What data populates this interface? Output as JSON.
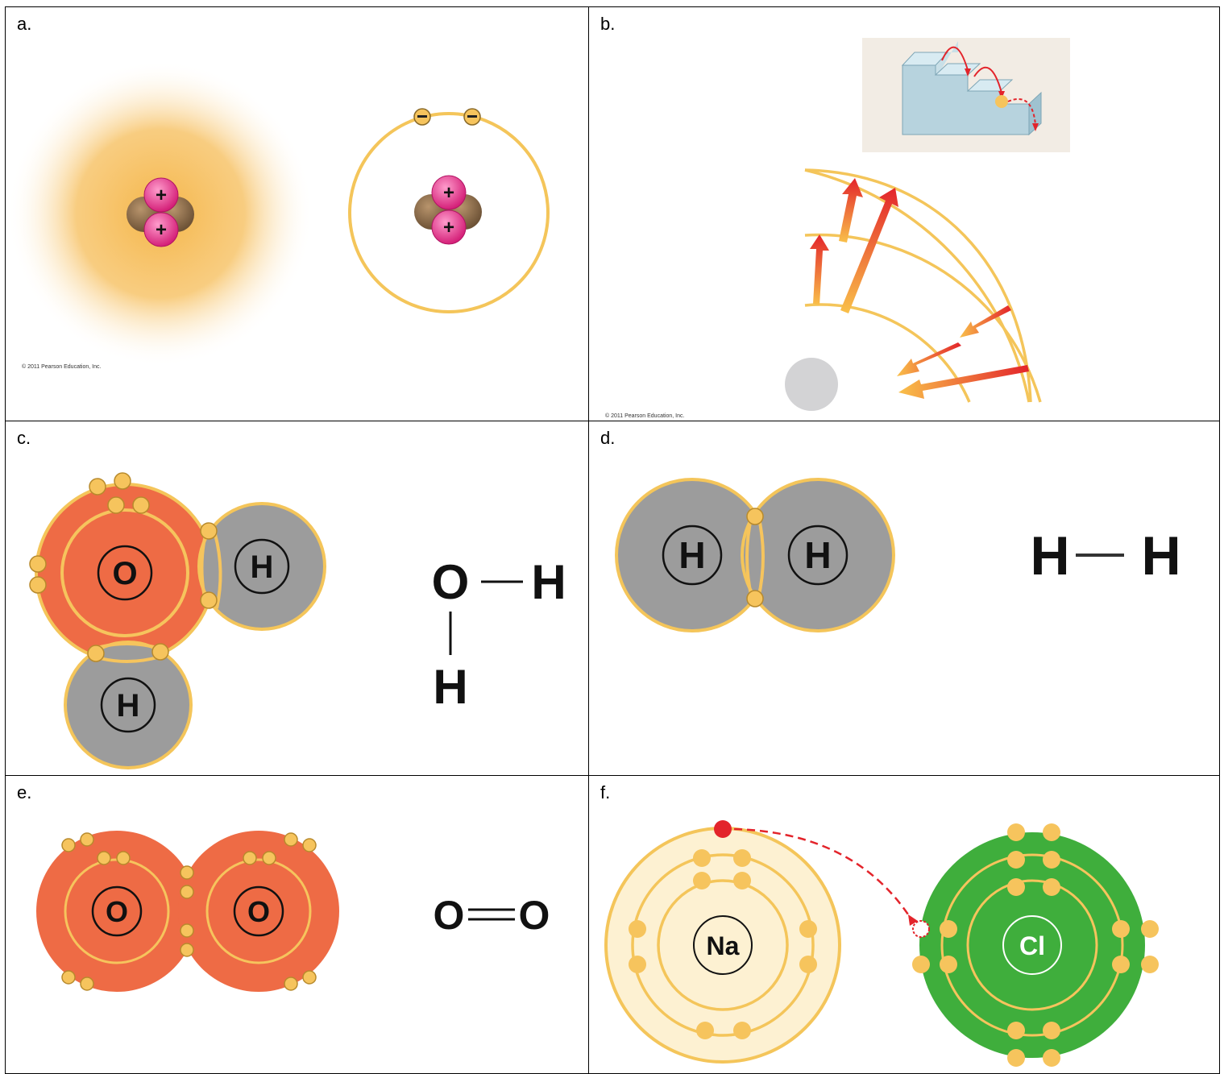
{
  "panels": {
    "a": {
      "label": "a.",
      "copyright": "© 2011 Pearson Education, Inc."
    },
    "b": {
      "label": "b.",
      "copyright": "© 2011 Pearson Education, Inc."
    },
    "c": {
      "label": "c.",
      "atoms": [
        "O",
        "H",
        "H"
      ],
      "formula_atoms": [
        "O",
        "H",
        "H"
      ]
    },
    "d": {
      "label": "d.",
      "atoms": [
        "H",
        "H"
      ],
      "formula_atoms": [
        "H",
        "H"
      ]
    },
    "e": {
      "label": "e.",
      "atoms": [
        "O",
        "O"
      ],
      "formula_atoms": [
        "O",
        "O"
      ]
    },
    "f": {
      "label": "f.",
      "atoms": [
        "Na",
        "Cl"
      ]
    }
  },
  "symbols": {
    "plus": "+",
    "minus": "−"
  },
  "colors": {
    "orbit": "#f4c55a",
    "electron": "#f6c45d",
    "oxygen": "#ee6b45",
    "hydrogen": "#9c9c9c",
    "sodium_fill": "#fdf1d2",
    "chlorine": "#3fae3c",
    "proton": "#e8358a",
    "neutron": "#8a6a48",
    "arrow": "#e3242b"
  }
}
